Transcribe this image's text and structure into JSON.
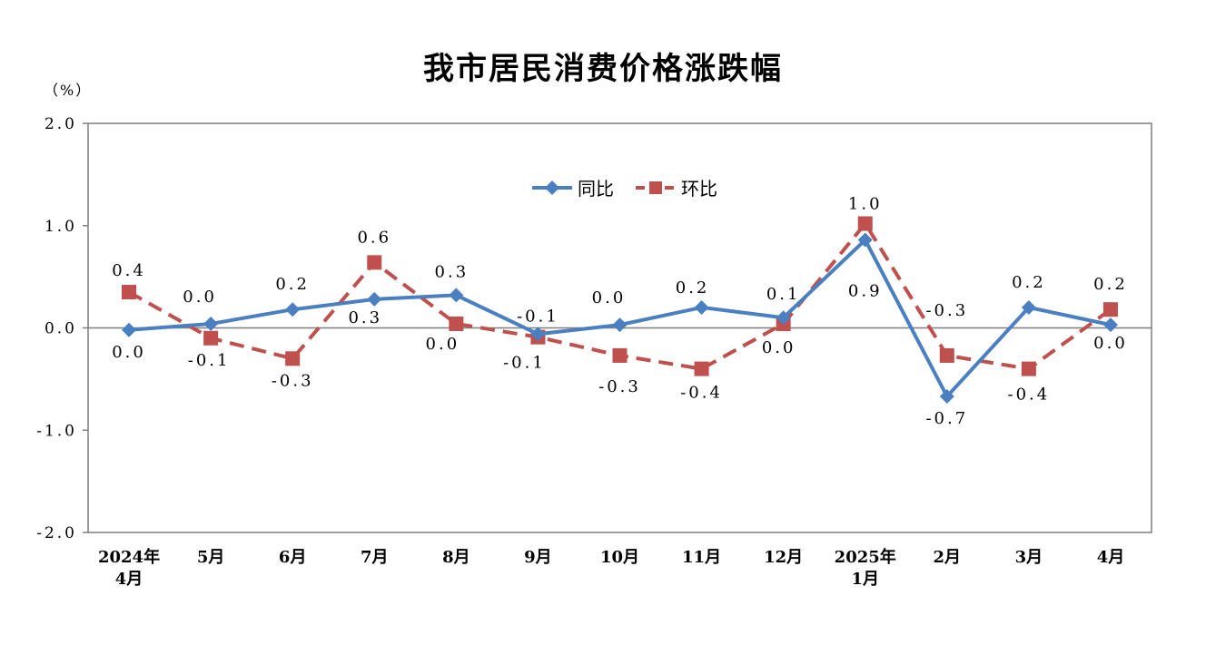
{
  "title": "我市居民消费价格涨跌幅",
  "unit_label": "（%）",
  "colors": {
    "yoy": "#4a7fc1",
    "mom": "#c0504d",
    "axis": "#7f7f7f",
    "zero": "#7f7f7f"
  },
  "chart_data": {
    "type": "line",
    "title": "我市居民消费价格涨跌幅",
    "ylabel": "（%）",
    "ylim": [
      -2.0,
      2.0
    ],
    "y_ticks": [
      "2.0",
      "1.0",
      "0.0",
      "-1.0",
      "-2.0"
    ],
    "y_tick_values": [
      2.0,
      1.0,
      0.0,
      -1.0,
      -2.0
    ],
    "categories": [
      [
        "2024年",
        "4月"
      ],
      [
        "5月"
      ],
      [
        "6月"
      ],
      [
        "7月"
      ],
      [
        "8月"
      ],
      [
        "9月"
      ],
      [
        "10月"
      ],
      [
        "11月"
      ],
      [
        "12月"
      ],
      [
        "2025年",
        "1月"
      ],
      [
        "2月"
      ],
      [
        "3月"
      ],
      [
        "4月"
      ]
    ],
    "legend_position": "top-center",
    "series": [
      {
        "name": "同比",
        "key": "yoy",
        "marker": "diamond",
        "line": "solid",
        "values": [
          -0.02,
          0.04,
          0.18,
          0.28,
          0.32,
          -0.06,
          0.03,
          0.2,
          0.1,
          0.86,
          -0.67,
          0.2,
          0.03
        ],
        "labels": [
          "0.0",
          "0.0",
          "0.2",
          "0.3",
          "0.3",
          "-0.1",
          "0.0",
          "0.2",
          "0.1",
          "0.9",
          "-0.7",
          "0.2",
          "0.0"
        ]
      },
      {
        "name": "环比",
        "key": "mom",
        "marker": "square",
        "line": "dashed",
        "values": [
          0.35,
          -0.1,
          -0.3,
          0.64,
          0.04,
          -0.09,
          -0.27,
          -0.4,
          0.04,
          1.02,
          -0.27,
          -0.4,
          0.18
        ],
        "labels": [
          "0.4",
          "-0.1",
          "-0.3",
          "0.6",
          "0.0",
          "-0.1",
          "-0.3",
          "-0.4",
          "0.0",
          "1.0",
          "-0.3",
          "-0.4",
          "0.2"
        ]
      }
    ]
  }
}
